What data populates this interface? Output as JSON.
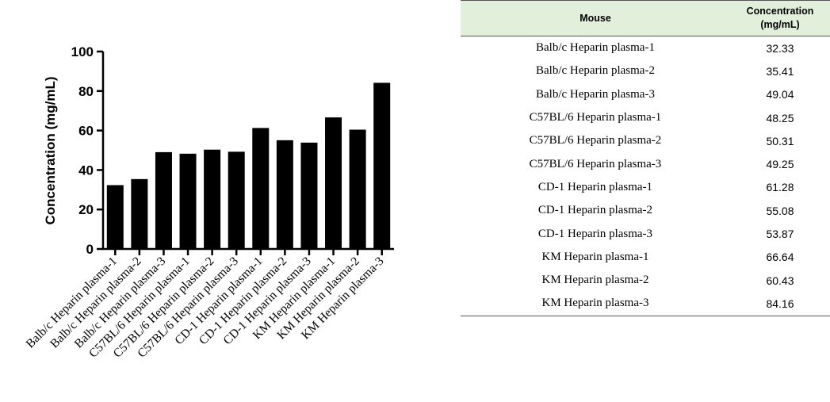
{
  "chart_data": {
    "type": "bar",
    "categories": [
      "Balb/c Heparin plasma-1",
      "Balb/c Heparin plasma-2",
      "Balb/c Heparin plasma-3",
      "C57BL/6 Heparin plasma-1",
      "C57BL/6 Heparin plasma-2",
      "C57BL/6 Heparin plasma-3",
      "CD-1 Heparin plasma-1",
      "CD-1 Heparin plasma-2",
      "CD-1 Heparin plasma-3",
      "KM Heparin plasma-1",
      "KM Heparin plasma-2",
      "KM Heparin plasma-3"
    ],
    "values": [
      32.33,
      35.41,
      49.04,
      48.25,
      50.31,
      49.25,
      61.28,
      55.08,
      53.87,
      66.64,
      60.43,
      84.16
    ],
    "ylabel": "Concentration (mg/mL)",
    "ylim": [
      0,
      100
    ],
    "yticks": [
      0,
      20,
      40,
      60,
      80,
      100
    ],
    "grid": false,
    "bar_color": "#000000"
  },
  "table": {
    "headers": [
      "Mouse",
      "Concentration",
      "(mg/mL)"
    ],
    "header_bg": "#e2efda",
    "rows": [
      [
        "Balb/c Heparin plasma-1",
        "32.33"
      ],
      [
        "Balb/c Heparin plasma-2",
        "35.41"
      ],
      [
        "Balb/c Heparin plasma-3",
        "49.04"
      ],
      [
        "C57BL/6 Heparin plasma-1",
        "48.25"
      ],
      [
        "C57BL/6 Heparin plasma-2",
        "50.31"
      ],
      [
        "C57BL/6 Heparin plasma-3",
        "49.25"
      ],
      [
        "CD-1 Heparin plasma-1",
        "61.28"
      ],
      [
        "CD-1 Heparin plasma-2",
        "55.08"
      ],
      [
        "CD-1 Heparin plasma-3",
        "53.87"
      ],
      [
        "KM Heparin plasma-1",
        "66.64"
      ],
      [
        "KM Heparin plasma-2",
        "60.43"
      ],
      [
        "KM Heparin plasma-3",
        "84.16"
      ]
    ]
  }
}
